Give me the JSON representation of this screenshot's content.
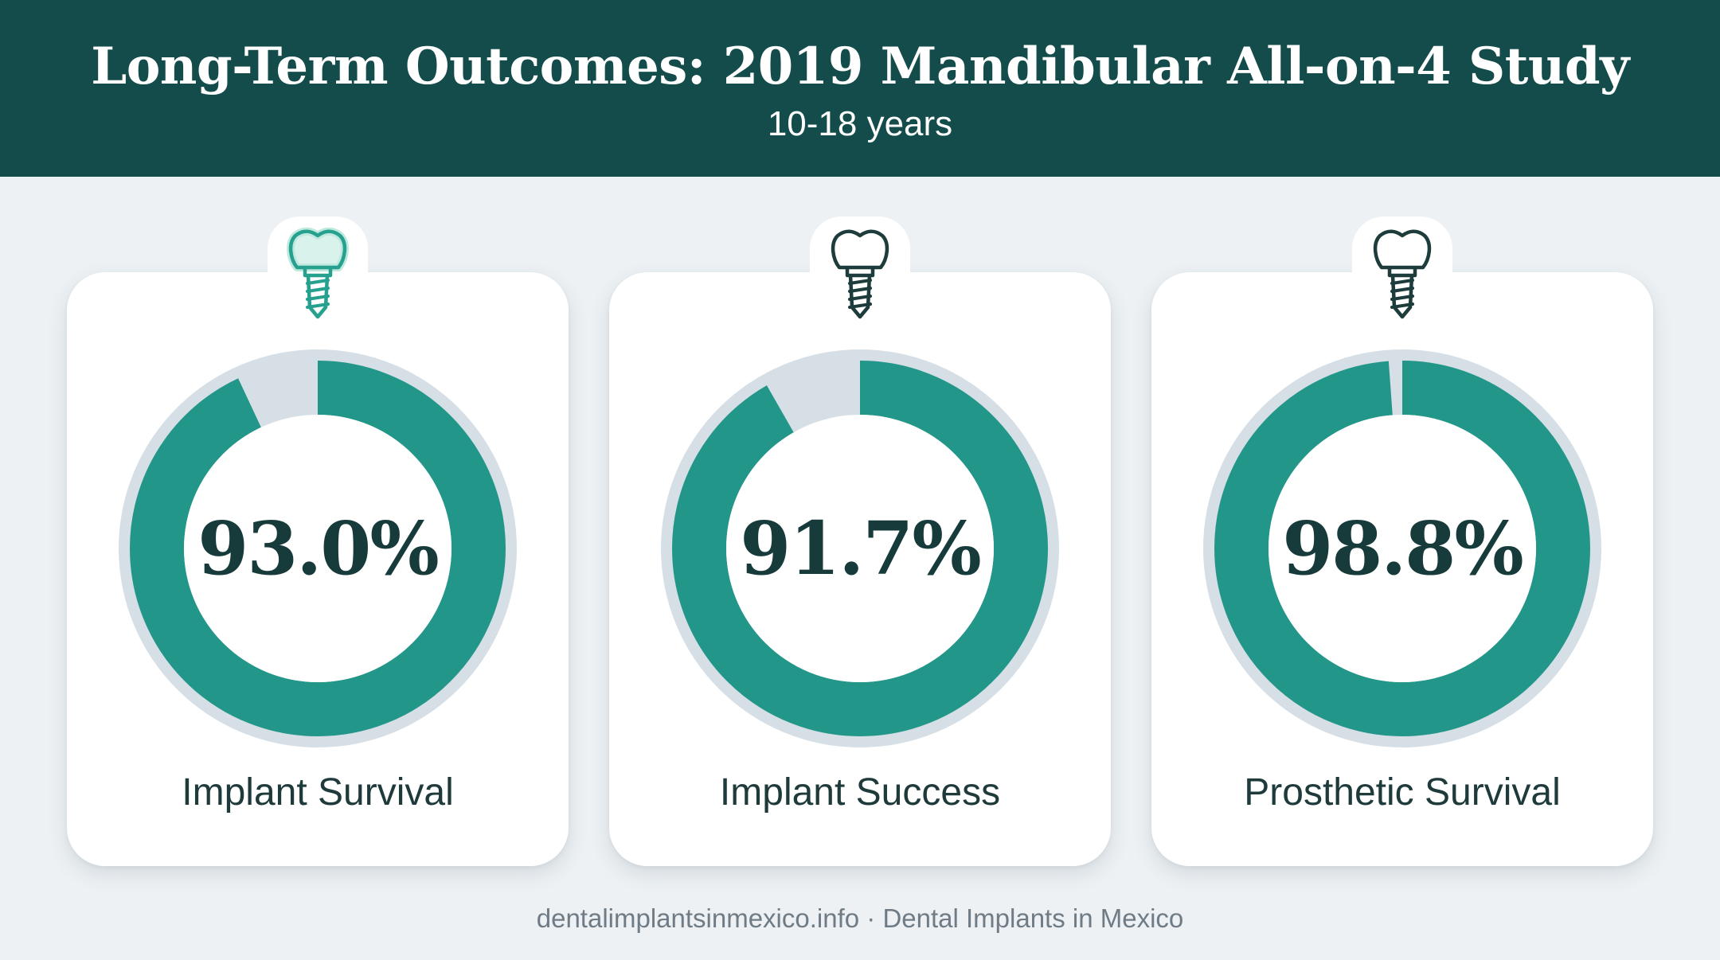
{
  "header": {
    "title": "Long-Term Outcomes: 2019 Mandibular All-on-4 Study",
    "subtitle": "10-18 years"
  },
  "colors": {
    "header_bg": "#134c4a",
    "ring_fill": "#23968a",
    "ring_track": "#d5dfe5",
    "icon_active": "#26a18f",
    "icon_default": "#1d3c3b",
    "page_bg": "#edf1f4"
  },
  "chart_data": [
    {
      "type": "pie",
      "label": "Implant Survival",
      "value_text": "93.0%",
      "value": 93.0,
      "max": 100,
      "icon": "dental-implant-icon",
      "icon_highlight": true
    },
    {
      "type": "pie",
      "label": "Implant Success",
      "value_text": "91.7%",
      "value": 91.7,
      "max": 100,
      "icon": "dental-implant-icon",
      "icon_highlight": false
    },
    {
      "type": "pie",
      "label": "Prosthetic Survival",
      "value_text": "98.8%",
      "value": 98.8,
      "max": 100,
      "icon": "dental-implant-icon",
      "icon_highlight": false
    }
  ],
  "footer": {
    "text": "dentalimplantsinmexico.info · Dental Implants in Mexico"
  }
}
